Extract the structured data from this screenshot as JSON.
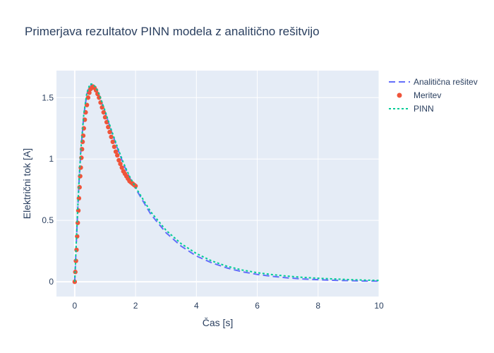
{
  "chart_data": {
    "type": "line",
    "title": "Primerjava rezultatov PINN modela z analitično rešitvijo",
    "xlabel": "Čas [s]",
    "ylabel": "Električni tok [A]",
    "xlim": [
      -0.6,
      10
    ],
    "ylim": [
      -0.12,
      1.72
    ],
    "x_ticks": [
      0,
      2,
      4,
      6,
      8,
      10
    ],
    "x_tick_labels": [
      "0",
      "2",
      "4",
      "6",
      "8",
      "10"
    ],
    "y_ticks": [
      0,
      0.5,
      1,
      1.5
    ],
    "y_tick_labels": [
      "0",
      "0.5",
      "1",
      "1.5"
    ],
    "grid": true,
    "legend_position": "top-right",
    "series": [
      {
        "name": "Analitična rešitev",
        "style": "dashed",
        "color": "#636efa",
        "x": [
          0,
          0.05,
          0.1,
          0.15,
          0.2,
          0.3,
          0.4,
          0.5,
          0.6,
          0.7,
          0.8,
          1.0,
          1.2,
          1.4,
          1.6,
          1.8,
          2.0,
          2.5,
          3.0,
          3.5,
          4.0,
          4.5,
          5.0,
          5.5,
          6.0,
          6.5,
          7.0,
          7.5,
          8.0,
          8.5,
          9.0,
          9.5,
          10.0
        ],
        "y": [
          0,
          0.3,
          0.59,
          0.85,
          1.06,
          1.36,
          1.53,
          1.6,
          1.6,
          1.57,
          1.52,
          1.38,
          1.23,
          1.09,
          0.96,
          0.85,
          0.76,
          0.55,
          0.4,
          0.29,
          0.21,
          0.155,
          0.113,
          0.082,
          0.06,
          0.044,
          0.032,
          0.023,
          0.017,
          0.012,
          0.009,
          0.006,
          0.005
        ]
      },
      {
        "name": "Meritev",
        "style": "markers",
        "color": "#ef553b",
        "x": [
          0,
          0.02,
          0.04,
          0.06,
          0.08,
          0.1,
          0.12,
          0.14,
          0.16,
          0.18,
          0.2,
          0.22,
          0.24,
          0.26,
          0.28,
          0.3,
          0.33,
          0.36,
          0.4,
          0.44,
          0.48,
          0.52,
          0.56,
          0.6,
          0.65,
          0.7,
          0.75,
          0.8,
          0.85,
          0.9,
          0.95,
          1.0,
          1.05,
          1.1,
          1.15,
          1.2,
          1.25,
          1.3,
          1.35,
          1.4,
          1.45,
          1.5,
          1.55,
          1.6,
          1.65,
          1.7,
          1.75,
          1.8,
          1.85,
          1.9,
          1.95,
          2.0
        ],
        "y": [
          0,
          0.08,
          0.17,
          0.26,
          0.37,
          0.48,
          0.58,
          0.68,
          0.77,
          0.86,
          0.93,
          1.01,
          1.08,
          1.14,
          1.19,
          1.25,
          1.32,
          1.38,
          1.44,
          1.5,
          1.54,
          1.57,
          1.58,
          1.59,
          1.58,
          1.56,
          1.53,
          1.5,
          1.46,
          1.42,
          1.38,
          1.34,
          1.3,
          1.26,
          1.22,
          1.18,
          1.14,
          1.1,
          1.06,
          1.03,
          0.99,
          0.96,
          0.93,
          0.9,
          0.88,
          0.86,
          0.84,
          0.82,
          0.81,
          0.8,
          0.79,
          0.78
        ]
      },
      {
        "name": "PINN",
        "style": "dotted",
        "color": "#00cc96",
        "x": [
          0,
          0.05,
          0.1,
          0.15,
          0.2,
          0.3,
          0.4,
          0.5,
          0.6,
          0.7,
          0.8,
          1.0,
          1.2,
          1.4,
          1.6,
          1.8,
          2.0,
          2.5,
          3.0,
          3.5,
          4.0,
          4.5,
          5.0,
          5.5,
          6.0,
          6.5,
          7.0,
          7.5,
          8.0,
          8.5,
          9.0,
          9.5,
          10.0
        ],
        "y": [
          0,
          0.31,
          0.6,
          0.86,
          1.07,
          1.37,
          1.54,
          1.61,
          1.61,
          1.58,
          1.53,
          1.39,
          1.24,
          1.1,
          0.97,
          0.86,
          0.77,
          0.57,
          0.42,
          0.31,
          0.23,
          0.17,
          0.127,
          0.096,
          0.074,
          0.058,
          0.046,
          0.036,
          0.029,
          0.023,
          0.018,
          0.014,
          0.011
        ]
      }
    ]
  }
}
